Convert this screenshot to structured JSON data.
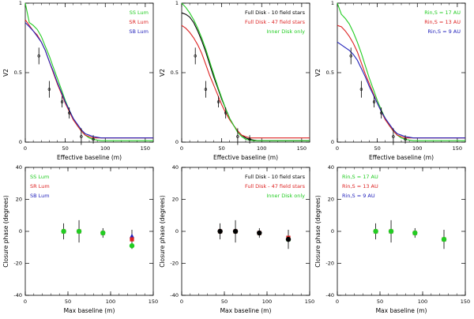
{
  "figure": {
    "background": "#ffffff",
    "axis_color": "#000000"
  },
  "chart_data": [
    {
      "id": "v2-ss-luminosity",
      "type": "line",
      "xlabel": "Effective baseline (m)",
      "ylabel": "V2",
      "xlim": [
        0,
        160
      ],
      "ylim": [
        0,
        1
      ],
      "xticks": [
        0,
        50,
        100,
        150
      ],
      "yticks": [
        0,
        0.5,
        1
      ],
      "legend_position": "top-right",
      "series": [
        {
          "name": "SS Lum",
          "color": "#22cc22",
          "x": [
            0,
            5,
            10,
            15,
            20,
            25,
            30,
            35,
            40,
            45,
            50,
            55,
            60,
            65,
            70,
            75,
            80,
            85,
            90,
            95,
            100,
            110,
            120,
            130,
            140,
            160
          ],
          "y": [
            1.0,
            0.86,
            0.84,
            0.81,
            0.76,
            0.69,
            0.62,
            0.54,
            0.46,
            0.38,
            0.3,
            0.23,
            0.17,
            0.12,
            0.08,
            0.05,
            0.03,
            0.02,
            0.015,
            0.01,
            0.01,
            0.01,
            0.01,
            0.01,
            0.01,
            0.01
          ]
        },
        {
          "name": "SR Lum",
          "color": "#dd2222",
          "x": [
            0,
            5,
            10,
            15,
            20,
            25,
            30,
            35,
            40,
            45,
            50,
            55,
            60,
            65,
            70,
            75,
            80,
            85,
            90,
            95,
            100,
            110,
            120,
            130,
            140,
            160
          ],
          "y": [
            0.88,
            0.84,
            0.8,
            0.77,
            0.72,
            0.66,
            0.58,
            0.5,
            0.42,
            0.35,
            0.28,
            0.22,
            0.16,
            0.12,
            0.08,
            0.05,
            0.04,
            0.03,
            0.03,
            0.03,
            0.03,
            0.03,
            0.03,
            0.03,
            0.03,
            0.03
          ]
        },
        {
          "name": "SB Lum",
          "color": "#2222bb",
          "x": [
            0,
            5,
            10,
            15,
            20,
            25,
            30,
            35,
            40,
            45,
            50,
            55,
            60,
            65,
            70,
            75,
            80,
            85,
            90,
            95,
            100,
            110,
            120,
            130,
            140,
            160
          ],
          "y": [
            0.86,
            0.83,
            0.8,
            0.76,
            0.72,
            0.66,
            0.58,
            0.51,
            0.43,
            0.36,
            0.29,
            0.23,
            0.17,
            0.13,
            0.09,
            0.06,
            0.05,
            0.04,
            0.035,
            0.03,
            0.03,
            0.03,
            0.03,
            0.03,
            0.03,
            0.03
          ]
        }
      ],
      "points": [
        {
          "x": 17,
          "y": 0.62,
          "err": 0.06
        },
        {
          "x": 30,
          "y": 0.38,
          "err": 0.06
        },
        {
          "x": 46,
          "y": 0.29,
          "err": 0.04
        },
        {
          "x": 55,
          "y": 0.21,
          "err": 0.04
        },
        {
          "x": 70,
          "y": 0.04,
          "err": 0.06
        },
        {
          "x": 85,
          "y": 0.02,
          "err": 0.03
        }
      ]
    },
    {
      "id": "v2-models",
      "type": "line",
      "xlabel": "Effective baseline (m)",
      "ylabel": "V2",
      "xlim": [
        0,
        160
      ],
      "ylim": [
        0,
        1
      ],
      "xticks": [
        0,
        50,
        100,
        150
      ],
      "yticks": [
        0,
        0.5,
        1
      ],
      "legend_position": "top-right",
      "series": [
        {
          "name": "Full Disk - 10 field stars",
          "color": "#000000",
          "x": [
            0,
            5,
            10,
            15,
            20,
            25,
            30,
            35,
            40,
            45,
            50,
            55,
            60,
            65,
            70,
            75,
            80,
            85,
            90,
            95,
            100,
            110,
            120,
            130,
            140,
            160
          ],
          "y": [
            0.93,
            0.92,
            0.9,
            0.86,
            0.8,
            0.73,
            0.65,
            0.56,
            0.47,
            0.39,
            0.31,
            0.24,
            0.17,
            0.12,
            0.08,
            0.05,
            0.03,
            0.02,
            0.015,
            0.01,
            0.01,
            0.01,
            0.01,
            0.01,
            0.01,
            0.01
          ]
        },
        {
          "name": "Full Disk - 47 field stars",
          "color": "#dd2222",
          "x": [
            0,
            5,
            10,
            15,
            20,
            25,
            30,
            35,
            40,
            45,
            50,
            55,
            60,
            65,
            70,
            75,
            80,
            85,
            90,
            95,
            100,
            110,
            120,
            130,
            140,
            160
          ],
          "y": [
            0.84,
            0.82,
            0.79,
            0.75,
            0.7,
            0.64,
            0.56,
            0.48,
            0.41,
            0.34,
            0.27,
            0.21,
            0.16,
            0.12,
            0.08,
            0.05,
            0.04,
            0.03,
            0.03,
            0.03,
            0.03,
            0.03,
            0.03,
            0.03,
            0.03,
            0.03
          ]
        },
        {
          "name": "Inner Disk only",
          "color": "#22cc22",
          "x": [
            0,
            5,
            10,
            15,
            20,
            25,
            30,
            35,
            40,
            45,
            50,
            55,
            60,
            65,
            70,
            75,
            80,
            85,
            90,
            95,
            100,
            110,
            120,
            130,
            140,
            160
          ],
          "y": [
            1.0,
            0.97,
            0.93,
            0.88,
            0.82,
            0.75,
            0.67,
            0.58,
            0.49,
            0.4,
            0.32,
            0.24,
            0.17,
            0.12,
            0.07,
            0.04,
            0.02,
            0.015,
            0.01,
            0.01,
            0.01,
            0.01,
            0.01,
            0.01,
            0.01,
            0.01
          ]
        }
      ],
      "points": [
        {
          "x": 17,
          "y": 0.62,
          "err": 0.06
        },
        {
          "x": 30,
          "y": 0.38,
          "err": 0.06
        },
        {
          "x": 46,
          "y": 0.29,
          "err": 0.04
        },
        {
          "x": 55,
          "y": 0.21,
          "err": 0.04
        },
        {
          "x": 70,
          "y": 0.04,
          "err": 0.06
        },
        {
          "x": 85,
          "y": 0.02,
          "err": 0.03
        }
      ]
    },
    {
      "id": "v2-rin",
      "type": "line",
      "xlabel": "Effective baseline (m)",
      "ylabel": "V2",
      "xlim": [
        0,
        160
      ],
      "ylim": [
        0,
        1
      ],
      "xticks": [
        0,
        50,
        100,
        150
      ],
      "yticks": [
        0,
        0.5,
        1
      ],
      "legend_position": "top-right",
      "series": [
        {
          "name": "Rin,S = 17 AU",
          "color": "#22cc22",
          "x": [
            0,
            5,
            10,
            15,
            20,
            25,
            30,
            35,
            40,
            45,
            50,
            55,
            60,
            65,
            70,
            75,
            80,
            85,
            90,
            95,
            100,
            110,
            120,
            130,
            140,
            160
          ],
          "y": [
            1.0,
            0.92,
            0.89,
            0.85,
            0.79,
            0.72,
            0.64,
            0.55,
            0.46,
            0.38,
            0.3,
            0.23,
            0.17,
            0.12,
            0.08,
            0.05,
            0.03,
            0.02,
            0.015,
            0.01,
            0.01,
            0.01,
            0.01,
            0.01,
            0.01,
            0.01
          ]
        },
        {
          "name": "Rin,S = 13 AU",
          "color": "#dd2222",
          "x": [
            0,
            5,
            10,
            15,
            20,
            25,
            30,
            35,
            40,
            45,
            50,
            55,
            60,
            65,
            70,
            75,
            80,
            85,
            90,
            95,
            100,
            110,
            120,
            130,
            140,
            160
          ],
          "y": [
            0.84,
            0.83,
            0.8,
            0.76,
            0.71,
            0.65,
            0.57,
            0.49,
            0.42,
            0.35,
            0.28,
            0.22,
            0.16,
            0.12,
            0.08,
            0.05,
            0.04,
            0.03,
            0.03,
            0.03,
            0.03,
            0.03,
            0.03,
            0.03,
            0.03,
            0.03
          ]
        },
        {
          "name": "Rin,S = 9 AU",
          "color": "#2222bb",
          "x": [
            0,
            5,
            10,
            15,
            20,
            25,
            30,
            35,
            40,
            45,
            50,
            55,
            60,
            65,
            70,
            75,
            80,
            85,
            90,
            95,
            100,
            110,
            120,
            130,
            140,
            160
          ],
          "y": [
            0.72,
            0.7,
            0.68,
            0.66,
            0.63,
            0.59,
            0.53,
            0.47,
            0.4,
            0.34,
            0.28,
            0.22,
            0.17,
            0.13,
            0.09,
            0.06,
            0.05,
            0.04,
            0.035,
            0.03,
            0.03,
            0.03,
            0.03,
            0.03,
            0.03,
            0.03
          ]
        }
      ],
      "points": [
        {
          "x": 17,
          "y": 0.62,
          "err": 0.06
        },
        {
          "x": 30,
          "y": 0.38,
          "err": 0.06
        },
        {
          "x": 46,
          "y": 0.29,
          "err": 0.04
        },
        {
          "x": 55,
          "y": 0.21,
          "err": 0.04
        },
        {
          "x": 70,
          "y": 0.04,
          "err": 0.06
        },
        {
          "x": 85,
          "y": 0.02,
          "err": 0.03
        }
      ]
    },
    {
      "id": "cp-ss-luminosity",
      "type": "scatter",
      "xlabel": "Max baseline (m)",
      "ylabel": "Closure phase (degrees)",
      "xlim": [
        0,
        150
      ],
      "ylim": [
        -40,
        40
      ],
      "xticks": [
        0,
        50,
        100,
        150
      ],
      "yticks": [
        -40,
        -20,
        0,
        20,
        40
      ],
      "legend_position": "top-left",
      "legend": [
        {
          "name": "SS Lum",
          "color": "#22cc22"
        },
        {
          "name": "SR Lum",
          "color": "#dd2222"
        },
        {
          "name": "SB Lum",
          "color": "#2222bb"
        }
      ],
      "observations": [
        {
          "x": 45,
          "y": 0,
          "err": 5
        },
        {
          "x": 63,
          "y": 0,
          "err": 7
        },
        {
          "x": 91,
          "y": -1,
          "err": 3
        },
        {
          "x": 125,
          "y": -5,
          "err": 6
        }
      ],
      "series": [
        {
          "name": "SS Lum",
          "color": "#22cc22",
          "x": [
            45,
            63,
            91,
            125
          ],
          "y": [
            0,
            0,
            -1,
            -9
          ]
        },
        {
          "name": "SR Lum",
          "color": "#dd2222",
          "x": [
            45,
            63,
            91,
            125
          ],
          "y": [
            0,
            0,
            -1,
            -5
          ]
        },
        {
          "name": "SB Lum",
          "color": "#2222bb",
          "x": [
            45,
            63,
            91,
            125
          ],
          "y": [
            0,
            0,
            -1,
            -3
          ]
        }
      ]
    },
    {
      "id": "cp-models",
      "type": "scatter",
      "xlabel": "Max baseline (m)",
      "ylabel": "Closure phase (degrees)",
      "xlim": [
        0,
        150
      ],
      "ylim": [
        -40,
        40
      ],
      "xticks": [
        0,
        50,
        100,
        150
      ],
      "yticks": [
        -40,
        -20,
        0,
        20,
        40
      ],
      "legend_position": "top-right",
      "legend": [
        {
          "name": "Full Disk - 10 field stars",
          "color": "#000000"
        },
        {
          "name": "Full Disk - 47 field stars",
          "color": "#dd2222"
        },
        {
          "name": "Inner Disk only",
          "color": "#22cc22"
        }
      ],
      "observations": [
        {
          "x": 45,
          "y": 0,
          "err": 5
        },
        {
          "x": 63,
          "y": 0,
          "err": 7
        },
        {
          "x": 91,
          "y": -1,
          "err": 3
        },
        {
          "x": 125,
          "y": -5,
          "err": 6
        }
      ],
      "series": [
        {
          "name": "Full Disk - 10 field stars",
          "color": "#000000",
          "x": [
            45,
            63,
            91,
            125
          ],
          "y": [
            0,
            0,
            -1,
            -5
          ]
        },
        {
          "name": "Full Disk - 47 field stars",
          "color": "#dd2222",
          "x": [
            45,
            63,
            91,
            125
          ],
          "y": [
            0,
            0,
            -1,
            -4
          ]
        },
        {
          "name": "Inner Disk only",
          "color": "#22cc22",
          "x": [
            45,
            63,
            91,
            125
          ],
          "y": [
            0,
            0,
            -1,
            -5
          ]
        }
      ]
    },
    {
      "id": "cp-rin",
      "type": "scatter",
      "xlabel": "Max baseline (m)",
      "ylabel": "Closure phase (degrees)",
      "xlim": [
        0,
        150
      ],
      "ylim": [
        -40,
        40
      ],
      "xticks": [
        0,
        50,
        100,
        150
      ],
      "yticks": [
        -40,
        -20,
        0,
        20,
        40
      ],
      "legend_position": "top-left",
      "legend": [
        {
          "name": "Rin,S = 17 AU",
          "color": "#22cc22"
        },
        {
          "name": "Rin,S = 13 AU",
          "color": "#dd2222"
        },
        {
          "name": "Rin,S = 9 AU",
          "color": "#2222bb"
        }
      ],
      "observations": [
        {
          "x": 45,
          "y": 0,
          "err": 5
        },
        {
          "x": 63,
          "y": 0,
          "err": 7
        },
        {
          "x": 91,
          "y": -1,
          "err": 3
        },
        {
          "x": 125,
          "y": -5,
          "err": 6
        }
      ],
      "series": [
        {
          "name": "Rin,S = 17 AU",
          "color": "#22cc22",
          "x": [
            45,
            63,
            91,
            125
          ],
          "y": [
            0,
            0,
            -1,
            -5
          ]
        },
        {
          "name": "Rin,S = 13 AU",
          "color": "#dd2222",
          "x": [
            45,
            63,
            91,
            125
          ],
          "y": [
            0,
            0,
            -1,
            -5
          ]
        },
        {
          "name": "Rin,S = 9 AU",
          "color": "#2222bb",
          "x": [
            45,
            63,
            91,
            125
          ],
          "y": [
            0,
            0,
            -1,
            -5
          ]
        }
      ]
    }
  ]
}
